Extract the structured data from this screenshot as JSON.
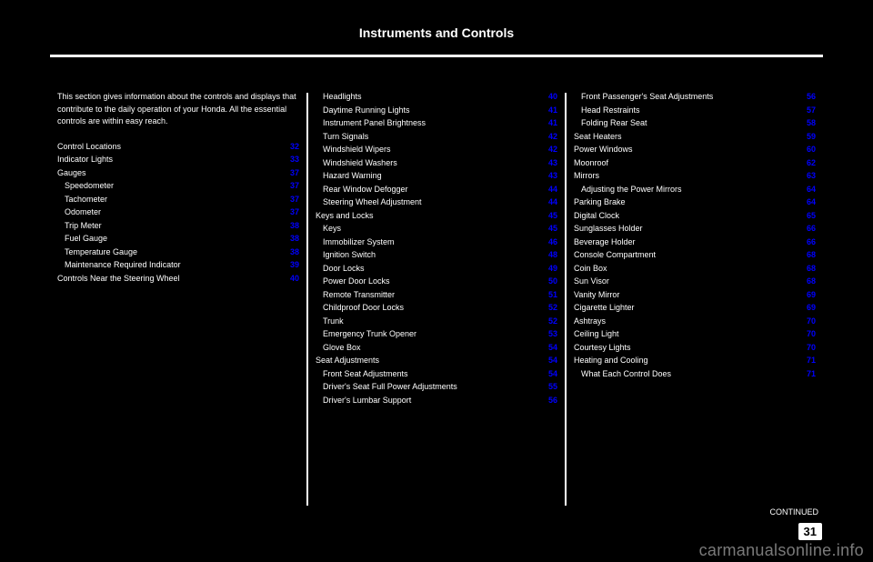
{
  "title": "Instruments and Controls",
  "page_number": "31",
  "watermark": "carmanualsonline.info",
  "continued_text": "CONTINUED",
  "column1": {
    "intro": "This section gives information about the controls and displays that contribute to the daily operation of your Honda. All the essential controls are within easy reach.",
    "entries": [
      {
        "text": "Control Locations",
        "page": "32"
      },
      {
        "text": "Indicator Lights",
        "page": "33"
      },
      {
        "text": "Gauges",
        "page": "37"
      },
      {
        "text": "Speedometer",
        "page": "37",
        "indent": true
      },
      {
        "text": "Tachometer",
        "page": "37",
        "indent": true
      },
      {
        "text": "Odometer",
        "page": "37",
        "indent": true
      },
      {
        "text": "Trip Meter",
        "page": "38",
        "indent": true
      },
      {
        "text": "Fuel Gauge",
        "page": "38",
        "indent": true
      },
      {
        "text": "Temperature Gauge",
        "page": "38",
        "indent": true
      },
      {
        "text": "Maintenance Required Indicator",
        "page": "39",
        "indent": true
      },
      {
        "text": "Controls Near the Steering Wheel",
        "page": "40"
      }
    ]
  },
  "column2": {
    "entries": [
      {
        "text": "Headlights",
        "page": "40",
        "indent": true
      },
      {
        "text": "Daytime Running Lights",
        "page": "41",
        "indent": true
      },
      {
        "text": "Instrument Panel Brightness",
        "page": "41",
        "indent": true
      },
      {
        "text": "Turn Signals",
        "page": "42",
        "indent": true
      },
      {
        "text": "Windshield Wipers",
        "page": "42",
        "indent": true
      },
      {
        "text": "Windshield Washers",
        "page": "43",
        "indent": true
      },
      {
        "text": "Hazard Warning",
        "page": "43",
        "indent": true
      },
      {
        "text": "Rear Window Defogger",
        "page": "44",
        "indent": true
      },
      {
        "text": "Steering Wheel Adjustment",
        "page": "44",
        "indent": true
      },
      {
        "text": "Keys and Locks",
        "page": "45"
      },
      {
        "text": "Keys",
        "page": "45",
        "indent": true
      },
      {
        "text": "Immobilizer System",
        "page": "46",
        "indent": true
      },
      {
        "text": "Ignition Switch",
        "page": "48",
        "indent": true
      },
      {
        "text": "Door Locks",
        "page": "49",
        "indent": true
      },
      {
        "text": "Power Door Locks",
        "page": "50",
        "indent": true
      },
      {
        "text": "Remote Transmitter",
        "page": "51",
        "indent": true
      },
      {
        "text": "Childproof Door Locks",
        "page": "52",
        "indent": true
      },
      {
        "text": "Trunk",
        "page": "52",
        "indent": true
      },
      {
        "text": "Emergency Trunk Opener",
        "page": "53",
        "indent": true
      },
      {
        "text": "Glove Box",
        "page": "54",
        "indent": true
      },
      {
        "text": "Seat Adjustments",
        "page": "54"
      },
      {
        "text": "Front Seat Adjustments",
        "page": "54",
        "indent": true
      },
      {
        "text": "Driver's Seat Full Power Adjustments",
        "page": "55",
        "indent": true
      },
      {
        "text": "Driver's Lumbar Support",
        "page": "56",
        "indent": true
      }
    ]
  },
  "column3": {
    "entries": [
      {
        "text": "Front Passenger's Seat Adjustments",
        "page": "56",
        "indent": true
      },
      {
        "text": "Head Restraints",
        "page": "57",
        "indent": true
      },
      {
        "text": "Folding Rear Seat",
        "page": "58",
        "indent": true
      },
      {
        "text": "Seat Heaters",
        "page": "59"
      },
      {
        "text": "Power Windows",
        "page": "60"
      },
      {
        "text": "Moonroof",
        "page": "62"
      },
      {
        "text": "Mirrors",
        "page": "63"
      },
      {
        "text": "Adjusting the Power Mirrors",
        "page": "64",
        "indent": true
      },
      {
        "text": "Parking Brake",
        "page": "64"
      },
      {
        "text": "Digital Clock",
        "page": "65"
      },
      {
        "text": "Sunglasses Holder",
        "page": "66"
      },
      {
        "text": "Beverage Holder",
        "page": "66"
      },
      {
        "text": "Console Compartment",
        "page": "68"
      },
      {
        "text": "Coin Box",
        "page": "68"
      },
      {
        "text": "Sun Visor",
        "page": "68"
      },
      {
        "text": "Vanity Mirror",
        "page": "69"
      },
      {
        "text": "Cigarette Lighter",
        "page": "69"
      },
      {
        "text": "Ashtrays",
        "page": "70"
      },
      {
        "text": "Ceiling Light",
        "page": "70"
      },
      {
        "text": "Courtesy Lights",
        "page": "70"
      },
      {
        "text": "Heating and Cooling",
        "page": "71"
      },
      {
        "text": "What Each Control Does",
        "page": "71",
        "indent": true
      }
    ]
  },
  "colors": {
    "background": "#000000",
    "text": "#ffffff",
    "page_link": "#0000ff",
    "watermark": "#7a7a7a"
  }
}
